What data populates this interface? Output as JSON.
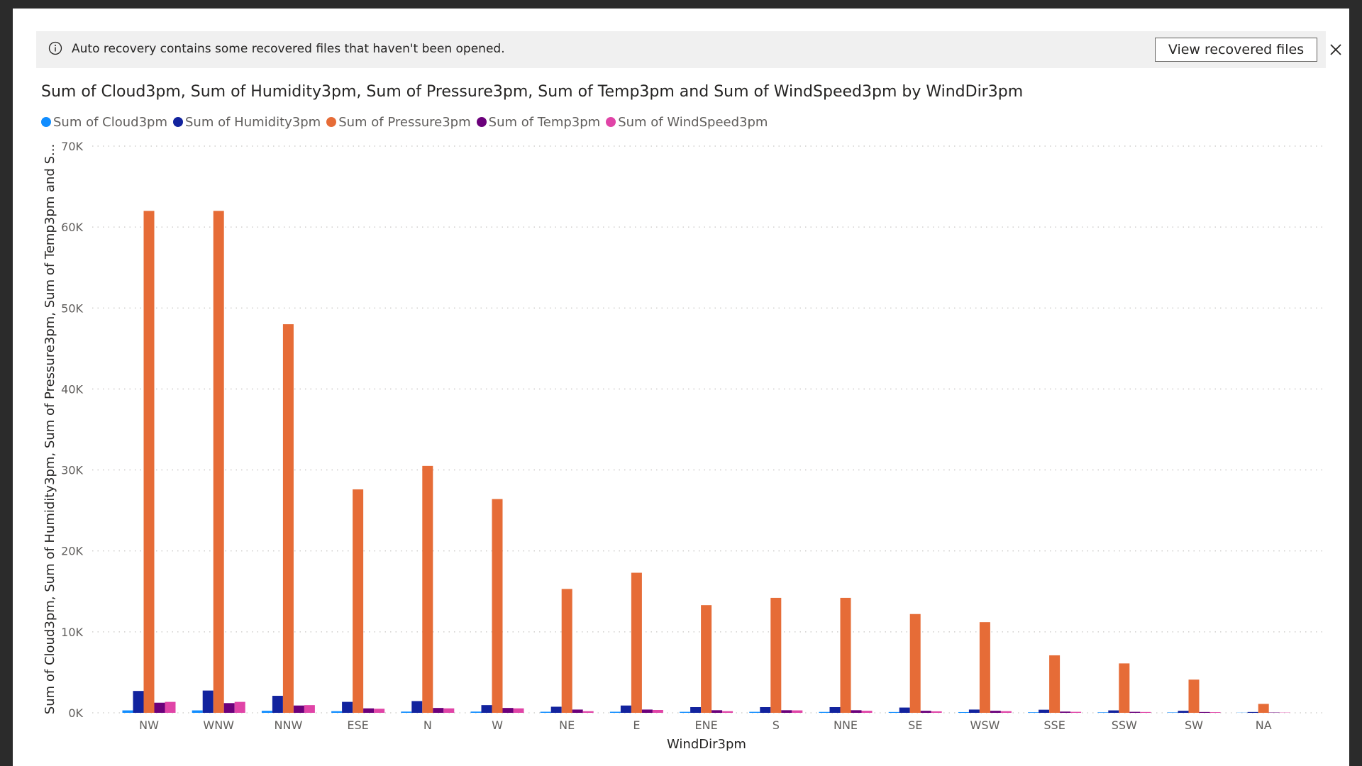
{
  "banner": {
    "icon": "info-icon",
    "message": "Auto recovery contains some recovered files that haven't been opened.",
    "button_label": "View recovered files",
    "close_icon": "close-icon"
  },
  "chart_data": {
    "type": "bar",
    "title": "Sum of Cloud3pm, Sum of Humidity3pm, Sum of Pressure3pm, Sum of Temp3pm and Sum of WindSpeed3pm by WindDir3pm",
    "xlabel": "WindDir3pm",
    "ylabel": "Sum of Cloud3pm, Sum of Humidity3pm, Sum of Pressure3pm, Sum of Temp3pm and S...",
    "ylim": [
      0,
      70000
    ],
    "yticks": [
      0,
      10000,
      20000,
      30000,
      40000,
      50000,
      60000,
      70000
    ],
    "ytick_labels": [
      "0K",
      "10K",
      "20K",
      "30K",
      "40K",
      "50K",
      "60K",
      "70K"
    ],
    "grid": true,
    "legend_position": "top-left",
    "categories": [
      "NW",
      "WNW",
      "NNW",
      "ESE",
      "N",
      "W",
      "NE",
      "E",
      "ENE",
      "S",
      "NNE",
      "SE",
      "WSW",
      "SSE",
      "SSW",
      "SW",
      "NA"
    ],
    "series": [
      {
        "name": "Sum of Cloud3pm",
        "color": "#118dff",
        "values": [
          300,
          300,
          250,
          200,
          150,
          150,
          130,
          130,
          120,
          120,
          110,
          100,
          90,
          70,
          60,
          50,
          20
        ]
      },
      {
        "name": "Sum of Humidity3pm",
        "color": "#12239e",
        "values": [
          2700,
          2750,
          2100,
          1350,
          1450,
          950,
          750,
          900,
          700,
          700,
          700,
          650,
          400,
          380,
          300,
          250,
          100
        ]
      },
      {
        "name": "Sum of Pressure3pm",
        "color": "#e66c37",
        "values": [
          62000,
          62000,
          48000,
          27600,
          30500,
          26400,
          15300,
          17300,
          13300,
          14200,
          14200,
          12200,
          11200,
          7100,
          6100,
          4100,
          1100
        ]
      },
      {
        "name": "Sum of Temp3pm",
        "color": "#6b007b",
        "values": [
          1250,
          1200,
          900,
          550,
          600,
          600,
          400,
          400,
          320,
          320,
          320,
          250,
          250,
          150,
          120,
          100,
          40
        ]
      },
      {
        "name": "Sum of WindSpeed3pm",
        "color": "#e044a7",
        "values": [
          1350,
          1350,
          950,
          500,
          550,
          550,
          200,
          350,
          200,
          300,
          250,
          180,
          200,
          120,
          100,
          80,
          30
        ]
      }
    ]
  }
}
